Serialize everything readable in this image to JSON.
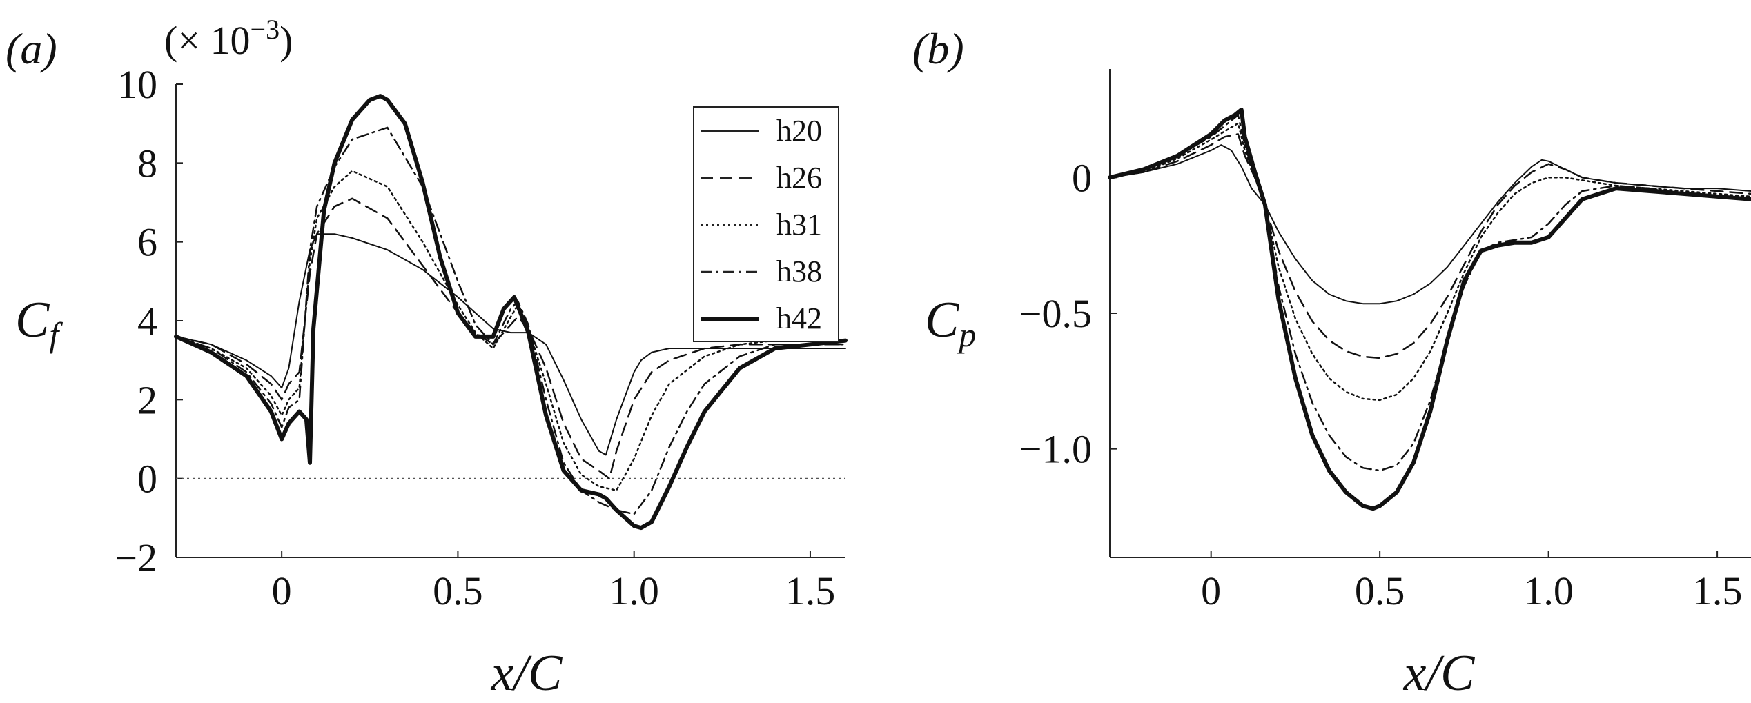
{
  "chart_data": [
    {
      "panel_label": "(a)",
      "type": "line",
      "ylabel": "C",
      "ylabel_sub": "f",
      "xlabel": "x/C",
      "multiplier_label": "(× 10",
      "multiplier_exp": "−3",
      "multiplier_close": ")",
      "xlim": [
        -0.3,
        1.6
      ],
      "ylim": [
        -2,
        10
      ],
      "xticks": [
        0,
        0.5,
        1.0,
        1.5
      ],
      "xtick_labels": [
        "0",
        "0.5",
        "1.0",
        "1.5"
      ],
      "yticks": [
        -2,
        0,
        2,
        4,
        6,
        8,
        10
      ],
      "ytick_labels": [
        "−2",
        "0",
        "2",
        "4",
        "6",
        "8",
        "10"
      ],
      "reference_line": {
        "y": 0,
        "style": "dotted"
      },
      "legend": [
        "h20",
        "h26",
        "h31",
        "h38",
        "h42"
      ],
      "legend_position": "top-right",
      "series": [
        {
          "name": "h20",
          "style": "solid-thin",
          "x": [
            -0.3,
            -0.2,
            -0.1,
            -0.03,
            0,
            0.02,
            0.05,
            0.08,
            0.1,
            0.15,
            0.2,
            0.3,
            0.4,
            0.5,
            0.55,
            0.6,
            0.65,
            0.7,
            0.75,
            0.8,
            0.85,
            0.9,
            0.92,
            0.95,
            1.0,
            1.02,
            1.05,
            1.1,
            1.2,
            1.3,
            1.4,
            1.5,
            1.6
          ],
          "y": [
            3.6,
            3.4,
            3.0,
            2.6,
            2.3,
            2.8,
            4.5,
            5.8,
            6.2,
            6.2,
            6.1,
            5.8,
            5.3,
            4.6,
            4.2,
            3.8,
            3.7,
            3.7,
            3.4,
            2.5,
            1.5,
            0.7,
            0.6,
            1.5,
            2.7,
            3.0,
            3.2,
            3.3,
            3.3,
            3.3,
            3.3,
            3.3,
            3.3
          ]
        },
        {
          "name": "h26",
          "style": "dashed",
          "x": [
            -0.3,
            -0.2,
            -0.1,
            -0.03,
            0,
            0.02,
            0.05,
            0.08,
            0.1,
            0.15,
            0.2,
            0.3,
            0.4,
            0.5,
            0.55,
            0.6,
            0.65,
            0.67,
            0.7,
            0.75,
            0.8,
            0.85,
            0.9,
            0.93,
            0.95,
            1.0,
            1.05,
            1.1,
            1.2,
            1.3,
            1.4,
            1.5,
            1.6
          ],
          "y": [
            3.6,
            3.4,
            2.9,
            2.4,
            2.0,
            2.4,
            2.7,
            5.2,
            6.2,
            6.9,
            7.1,
            6.6,
            5.4,
            4.2,
            3.7,
            3.4,
            3.9,
            4.1,
            3.8,
            2.8,
            1.4,
            0.5,
            0.2,
            0.0,
            0.7,
            2.0,
            2.7,
            3.0,
            3.3,
            3.4,
            3.4,
            3.4,
            3.4
          ]
        },
        {
          "name": "h31",
          "style": "dotted",
          "x": [
            -0.3,
            -0.2,
            -0.1,
            -0.03,
            0,
            0.02,
            0.05,
            0.08,
            0.1,
            0.15,
            0.2,
            0.3,
            0.4,
            0.5,
            0.55,
            0.6,
            0.65,
            0.67,
            0.7,
            0.75,
            0.8,
            0.85,
            0.9,
            0.95,
            1.0,
            1.05,
            1.1,
            1.2,
            1.3,
            1.4,
            1.5,
            1.6
          ],
          "y": [
            3.6,
            3.3,
            2.8,
            2.1,
            1.6,
            2.0,
            2.3,
            5.5,
            6.6,
            7.4,
            7.8,
            7.4,
            6.0,
            4.4,
            3.7,
            3.3,
            4.1,
            4.4,
            3.8,
            2.4,
            0.9,
            0.1,
            -0.2,
            -0.3,
            0.5,
            1.6,
            2.4,
            3.1,
            3.4,
            3.5,
            3.5,
            3.5
          ]
        },
        {
          "name": "h38",
          "style": "dashdot",
          "x": [
            -0.3,
            -0.2,
            -0.1,
            -0.03,
            0,
            0.02,
            0.05,
            0.08,
            0.1,
            0.15,
            0.2,
            0.3,
            0.4,
            0.5,
            0.55,
            0.6,
            0.65,
            0.67,
            0.7,
            0.75,
            0.8,
            0.85,
            0.9,
            0.95,
            1.0,
            1.05,
            1.1,
            1.15,
            1.2,
            1.3,
            1.4,
            1.5,
            1.6
          ],
          "y": [
            3.6,
            3.3,
            2.7,
            1.9,
            1.3,
            1.8,
            2.0,
            5.8,
            6.9,
            7.9,
            8.6,
            8.9,
            7.4,
            5.0,
            3.9,
            3.4,
            4.3,
            4.5,
            3.9,
            2.0,
            0.4,
            -0.3,
            -0.6,
            -0.8,
            -0.9,
            -0.3,
            0.8,
            1.7,
            2.4,
            3.1,
            3.4,
            3.4,
            3.4
          ]
        },
        {
          "name": "h42",
          "style": "solid-thick",
          "x": [
            -0.3,
            -0.2,
            -0.1,
            -0.03,
            0,
            0.02,
            0.05,
            0.07,
            0.08,
            0.09,
            0.12,
            0.15,
            0.2,
            0.25,
            0.28,
            0.3,
            0.35,
            0.4,
            0.45,
            0.5,
            0.55,
            0.6,
            0.63,
            0.66,
            0.7,
            0.75,
            0.8,
            0.85,
            0.9,
            0.92,
            0.95,
            1.0,
            1.02,
            1.05,
            1.1,
            1.15,
            1.2,
            1.3,
            1.4,
            1.5,
            1.6
          ],
          "y": [
            3.6,
            3.2,
            2.6,
            1.7,
            1.0,
            1.4,
            1.7,
            1.5,
            0.4,
            3.8,
            6.8,
            8.0,
            9.1,
            9.6,
            9.7,
            9.6,
            9.0,
            7.5,
            5.6,
            4.2,
            3.6,
            3.6,
            4.3,
            4.6,
            3.7,
            1.6,
            0.2,
            -0.3,
            -0.4,
            -0.5,
            -0.8,
            -1.2,
            -1.25,
            -1.1,
            -0.2,
            0.8,
            1.7,
            2.8,
            3.3,
            3.4,
            3.5
          ]
        }
      ]
    },
    {
      "panel_label": "(b)",
      "type": "line",
      "ylabel": "C",
      "ylabel_sub": "p",
      "xlabel": "x/C",
      "xlim": [
        -0.3,
        1.6
      ],
      "ylim": [
        -1.4,
        0.4
      ],
      "xticks": [
        0,
        0.5,
        1.0,
        1.5
      ],
      "xtick_labels": [
        "0",
        "0.5",
        "1.0",
        "1.5"
      ],
      "yticks": [
        0,
        -0.5,
        -1.0
      ],
      "ytick_labels": [
        "0",
        "−0.5",
        "−1.0"
      ],
      "series": [
        {
          "name": "h20",
          "style": "solid-thin",
          "x": [
            -0.3,
            -0.2,
            -0.1,
            0,
            0.03,
            0.06,
            0.09,
            0.12,
            0.16,
            0.2,
            0.25,
            0.3,
            0.35,
            0.4,
            0.45,
            0.5,
            0.55,
            0.6,
            0.65,
            0.7,
            0.75,
            0.8,
            0.85,
            0.9,
            0.95,
            0.98,
            1.0,
            1.05,
            1.1,
            1.2,
            1.3,
            1.4,
            1.5,
            1.6
          ],
          "y": [
            0.0,
            0.02,
            0.05,
            0.1,
            0.12,
            0.1,
            0.04,
            -0.04,
            -0.1,
            -0.2,
            -0.3,
            -0.38,
            -0.43,
            -0.455,
            -0.465,
            -0.465,
            -0.455,
            -0.43,
            -0.39,
            -0.33,
            -0.25,
            -0.17,
            -0.09,
            -0.02,
            0.04,
            0.065,
            0.06,
            0.03,
            0.0,
            -0.02,
            -0.03,
            -0.04,
            -0.04,
            -0.05
          ]
        },
        {
          "name": "h26",
          "style": "dashed",
          "x": [
            -0.3,
            -0.2,
            -0.1,
            0,
            0.04,
            0.08,
            0.1,
            0.13,
            0.16,
            0.2,
            0.25,
            0.3,
            0.35,
            0.4,
            0.45,
            0.5,
            0.55,
            0.6,
            0.65,
            0.7,
            0.75,
            0.8,
            0.85,
            0.9,
            0.95,
            1.0,
            1.05,
            1.1,
            1.2,
            1.3,
            1.4,
            1.5,
            1.6
          ],
          "y": [
            0.0,
            0.02,
            0.06,
            0.12,
            0.15,
            0.16,
            0.08,
            0.0,
            -0.1,
            -0.27,
            -0.42,
            -0.53,
            -0.6,
            -0.64,
            -0.66,
            -0.665,
            -0.65,
            -0.61,
            -0.54,
            -0.44,
            -0.32,
            -0.2,
            -0.1,
            -0.03,
            0.02,
            0.05,
            0.03,
            0.0,
            -0.02,
            -0.03,
            -0.04,
            -0.05,
            -0.06
          ]
        },
        {
          "name": "h31",
          "style": "dotted",
          "x": [
            -0.3,
            -0.2,
            -0.1,
            0,
            0.04,
            0.08,
            0.1,
            0.13,
            0.16,
            0.2,
            0.25,
            0.3,
            0.35,
            0.4,
            0.45,
            0.5,
            0.55,
            0.6,
            0.65,
            0.7,
            0.75,
            0.8,
            0.85,
            0.9,
            0.95,
            1.0,
            1.05,
            1.1,
            1.2,
            1.3,
            1.4,
            1.5,
            1.6
          ],
          "y": [
            0.0,
            0.02,
            0.07,
            0.14,
            0.17,
            0.2,
            0.1,
            0.0,
            -0.1,
            -0.33,
            -0.52,
            -0.65,
            -0.74,
            -0.79,
            -0.815,
            -0.82,
            -0.8,
            -0.74,
            -0.64,
            -0.5,
            -0.35,
            -0.22,
            -0.13,
            -0.06,
            -0.02,
            0.0,
            0.0,
            -0.01,
            -0.03,
            -0.04,
            -0.05,
            -0.06,
            -0.07
          ]
        },
        {
          "name": "h38",
          "style": "dashdot",
          "x": [
            -0.3,
            -0.2,
            -0.1,
            0,
            0.04,
            0.08,
            0.1,
            0.13,
            0.16,
            0.2,
            0.25,
            0.3,
            0.35,
            0.4,
            0.45,
            0.5,
            0.55,
            0.6,
            0.65,
            0.7,
            0.75,
            0.8,
            0.85,
            0.9,
            0.95,
            1.0,
            1.05,
            1.1,
            1.2,
            1.3,
            1.4,
            1.5,
            1.6
          ],
          "y": [
            0.0,
            0.03,
            0.08,
            0.15,
            0.19,
            0.23,
            0.12,
            0.0,
            -0.1,
            -0.4,
            -0.65,
            -0.83,
            -0.95,
            -1.03,
            -1.07,
            -1.08,
            -1.06,
            -0.98,
            -0.82,
            -0.6,
            -0.4,
            -0.27,
            -0.24,
            -0.23,
            -0.22,
            -0.17,
            -0.1,
            -0.05,
            -0.03,
            -0.04,
            -0.06,
            -0.07,
            -0.08
          ]
        },
        {
          "name": "h42",
          "style": "solid-thick",
          "x": [
            -0.3,
            -0.2,
            -0.1,
            0,
            0.04,
            0.07,
            0.09,
            0.1,
            0.13,
            0.16,
            0.2,
            0.25,
            0.3,
            0.35,
            0.4,
            0.45,
            0.48,
            0.5,
            0.55,
            0.6,
            0.65,
            0.7,
            0.75,
            0.8,
            0.85,
            0.9,
            0.95,
            1.0,
            1.05,
            1.1,
            1.2,
            1.3,
            1.4,
            1.5,
            1.6
          ],
          "y": [
            0.0,
            0.03,
            0.08,
            0.16,
            0.21,
            0.23,
            0.25,
            0.15,
            0.02,
            -0.1,
            -0.45,
            -0.74,
            -0.95,
            -1.08,
            -1.16,
            -1.21,
            -1.22,
            -1.21,
            -1.16,
            -1.05,
            -0.86,
            -0.6,
            -0.38,
            -0.27,
            -0.25,
            -0.24,
            -0.24,
            -0.22,
            -0.15,
            -0.08,
            -0.04,
            -0.05,
            -0.06,
            -0.07,
            -0.08
          ]
        }
      ]
    }
  ]
}
